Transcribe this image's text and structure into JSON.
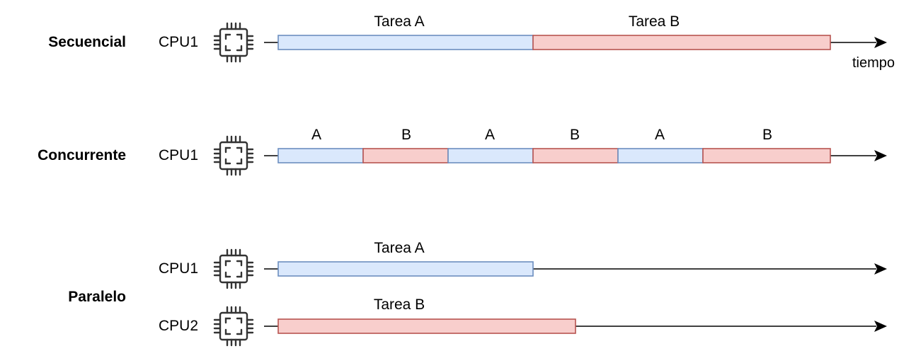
{
  "colors": {
    "task_a_fill": "#dae8fc",
    "task_a_stroke": "#6c8ebf",
    "task_b_fill": "#f8cecc",
    "task_b_stroke": "#b85450",
    "chip": "#333333",
    "line": "#000000"
  },
  "icons": {
    "cpu": "cpu-chip-icon",
    "arrow": "arrowhead-icon"
  },
  "sections": {
    "sequential": {
      "title": "Secuencial",
      "cpu_label": "CPU1",
      "tasks": [
        {
          "label": "Tarea A",
          "kind": "A"
        },
        {
          "label": "Tarea B",
          "kind": "B"
        }
      ],
      "axis_label": "tiempo"
    },
    "concurrent": {
      "title": "Concurrente",
      "cpu_label": "CPU1",
      "tasks": [
        {
          "label": "A",
          "kind": "A"
        },
        {
          "label": "B",
          "kind": "B"
        },
        {
          "label": "A",
          "kind": "A"
        },
        {
          "label": "B",
          "kind": "B"
        },
        {
          "label": "A",
          "kind": "A"
        },
        {
          "label": "B",
          "kind": "B"
        }
      ]
    },
    "parallel": {
      "title": "Paralelo",
      "cpu1_label": "CPU1",
      "cpu2_label": "CPU2",
      "task1": {
        "label": "Tarea A",
        "kind": "A"
      },
      "task2": {
        "label": "Tarea B",
        "kind": "B"
      }
    }
  }
}
